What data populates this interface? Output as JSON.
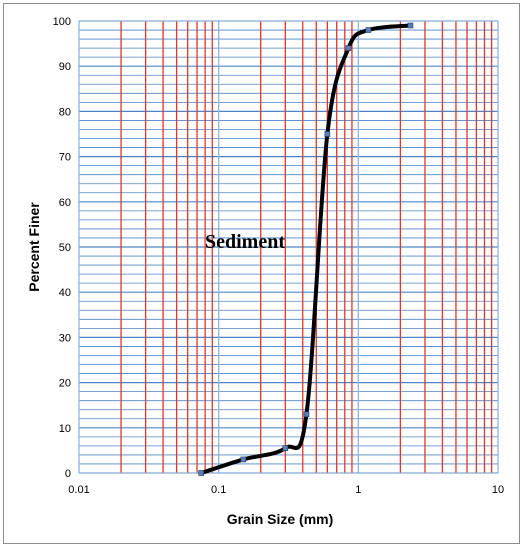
{
  "chart_data": {
    "type": "line",
    "title": "",
    "xlabel": "Grain Size (mm)",
    "ylabel": "Percent Finer",
    "x_scale": "log",
    "xlim": [
      0.01,
      10
    ],
    "ylim": [
      0,
      100
    ],
    "x_ticks": [
      "0.01",
      "0.1",
      "1",
      "10"
    ],
    "y_ticks": [
      "0",
      "10",
      "20",
      "30",
      "40",
      "50",
      "60",
      "70",
      "80",
      "90",
      "100"
    ],
    "grid": true,
    "colors": {
      "major_vertical_grid": "#e8332b",
      "minor_vertical_grid": "#e8332b",
      "horizontal_grid": "#4a86c8",
      "series_line": "#000000",
      "markers": "#5b7fb5"
    },
    "annotations": [
      {
        "text": "Sediment"
      }
    ],
    "series": [
      {
        "x": [
          0.075,
          0.15,
          0.3,
          0.425,
          0.6,
          0.85,
          1.18,
          2.36
        ],
        "y": [
          0,
          3,
          5.5,
          13,
          75,
          94,
          98,
          99
        ]
      }
    ]
  }
}
